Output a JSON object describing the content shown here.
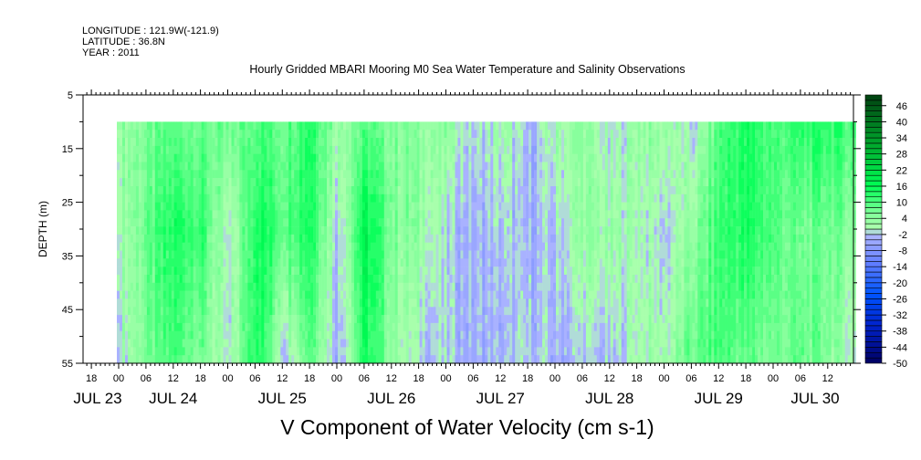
{
  "header": {
    "longitude": "LONGITUDE : 121.9W(-121.9)",
    "latitude": "LATITUDE : 36.8N",
    "year": "YEAR : 2011"
  },
  "chart_data": {
    "type": "heatmap",
    "title": "Hourly Gridded MBARI Mooring M0 Sea Water Temperature and Salinity Observations",
    "variable_title": "V Component of Water Velocity (cm s-1)",
    "ylabel": "DEPTH (m)",
    "ylim": [
      5,
      55
    ],
    "y_inverted": true,
    "y_ticks": [
      5,
      15,
      25,
      35,
      45,
      55
    ],
    "x_range_hours_from_jul24_00": [
      -7.8,
      161.8
    ],
    "x_hour_labels": [
      "18",
      "00",
      "06",
      "12",
      "18",
      "00",
      "06",
      "12",
      "18",
      "00",
      "06",
      "12",
      "18",
      "00",
      "06",
      "12",
      "18",
      "00",
      "06",
      "12",
      "18",
      "00",
      "06",
      "12",
      "18",
      "00",
      "06",
      "12"
    ],
    "x_day_labels": [
      "JUL 23",
      "JUL 24",
      "JUL 25",
      "JUL 26",
      "JUL 27",
      "JUL 28",
      "JUL 29",
      "JUL 30"
    ],
    "data_depths": [
      10,
      30,
      55
    ],
    "data_times_hours_from_jul24_00": [
      0,
      6,
      12,
      18,
      24,
      30,
      36,
      42,
      48,
      54,
      60,
      66,
      72,
      78,
      84,
      90,
      96,
      102,
      108,
      114,
      120,
      126,
      132,
      138,
      144,
      150,
      156,
      162
    ],
    "values_by_time": [
      [
        4,
        2,
        0
      ],
      [
        6,
        8,
        6
      ],
      [
        8,
        14,
        10
      ],
      [
        8,
        12,
        6
      ],
      [
        6,
        -2,
        -2
      ],
      [
        10,
        16,
        16
      ],
      [
        8,
        10,
        -2
      ],
      [
        14,
        16,
        10
      ],
      [
        4,
        -2,
        -4
      ],
      [
        8,
        18,
        14
      ],
      [
        6,
        6,
        4
      ],
      [
        4,
        4,
        -2
      ],
      [
        4,
        -2,
        -2
      ],
      [
        -2,
        -4,
        -4
      ],
      [
        2,
        -2,
        -4
      ],
      [
        -4,
        -4,
        -2
      ],
      [
        2,
        -2,
        -4
      ],
      [
        4,
        4,
        -2
      ],
      [
        -2,
        2,
        -4
      ],
      [
        4,
        2,
        2
      ],
      [
        4,
        -2,
        2
      ],
      [
        -2,
        4,
        8
      ],
      [
        10,
        12,
        10
      ],
      [
        14,
        14,
        8
      ],
      [
        10,
        10,
        6
      ],
      [
        12,
        6,
        8
      ],
      [
        14,
        8,
        6
      ],
      [
        10,
        4,
        -2
      ]
    ],
    "colorbar": {
      "min": -50,
      "max": 50,
      "step": 2,
      "labels": [
        "46",
        "40",
        "34",
        "28",
        "22",
        "16",
        "10",
        "4",
        "-2",
        "-8",
        "-14",
        "-20",
        "-26",
        "-32",
        "-38",
        "-44",
        "-50"
      ],
      "color_stops": [
        {
          "v": -50,
          "c": "#000060"
        },
        {
          "v": -36,
          "c": "#0022cc"
        },
        {
          "v": -24,
          "c": "#0055ff"
        },
        {
          "v": -12,
          "c": "#6680ff"
        },
        {
          "v": -2,
          "c": "#b0b8ff"
        },
        {
          "v": 0,
          "c": "#b0ffb0"
        },
        {
          "v": 6,
          "c": "#80ff99"
        },
        {
          "v": 16,
          "c": "#00ff55"
        },
        {
          "v": 30,
          "c": "#00b030"
        },
        {
          "v": 50,
          "c": "#004010"
        }
      ]
    }
  }
}
